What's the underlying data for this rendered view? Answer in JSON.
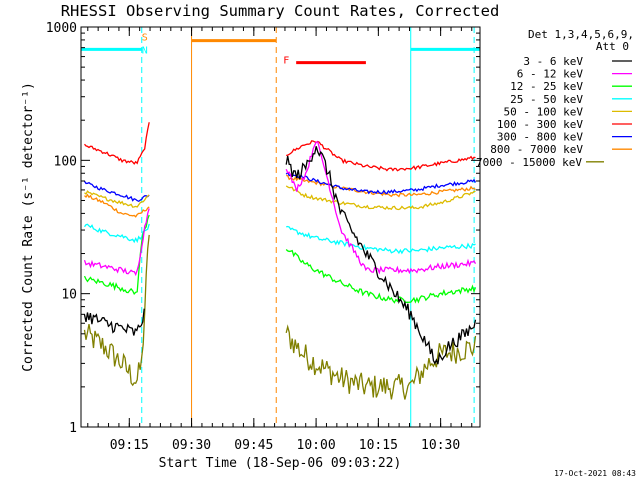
{
  "chart_data": {
    "type": "line",
    "title": "RHESSI Observing Summary Count Rates, Corrected",
    "xlabel": "Start Time (18-Sep-06 09:03:22)",
    "ylabel": "Corrected Count Rate (s⁻¹ detector⁻¹)",
    "yscale": "log",
    "ylim": [
      1,
      1000
    ],
    "xlim": [
      9.0561,
      10.6581
    ],
    "x_unit": "hour of day (UT, 18-Sep-2006)",
    "x_ticks": [
      {
        "x": 9.25,
        "label": "09:15"
      },
      {
        "x": 9.5,
        "label": "09:30"
      },
      {
        "x": 9.75,
        "label": "09:45"
      },
      {
        "x": 10.0,
        "label": "10:00"
      },
      {
        "x": 10.25,
        "label": "10:15"
      },
      {
        "x": 10.5,
        "label": "10:30"
      }
    ],
    "y_ticks": [
      {
        "y": 1,
        "label": "1"
      },
      {
        "y": 10,
        "label": "10"
      },
      {
        "y": 100,
        "label": "100"
      },
      {
        "y": 1000,
        "label": "1000"
      }
    ],
    "legend_header": [
      "Det 1,3,4,5,6,9,",
      "Att 0"
    ],
    "legend_position": "right",
    "series": [
      {
        "name": "3 - 6 keV",
        "color": "#000000",
        "noise": 0.12,
        "segments": [
          {
            "x": [
              9.07,
              9.15,
              9.22,
              9.28,
              9.31
            ],
            "y": [
              7,
              6,
              5.5,
              5,
              7
            ]
          },
          {
            "x": [
              9.88,
              9.92,
              9.96,
              10.0,
              10.04,
              10.1,
              10.2,
              10.3,
              10.38,
              10.45,
              10.48,
              10.53,
              10.6,
              10.64
            ],
            "y": [
              100,
              75,
              90,
              130,
              90,
              40,
              20,
              11,
              7,
              4,
              3,
              4,
              5,
              6
            ]
          }
        ]
      },
      {
        "name": "6 - 12 keV",
        "color": "#ff00ff",
        "noise": 0.05,
        "segments": [
          {
            "x": [
              9.07,
              9.15,
              9.22,
              9.28,
              9.31,
              9.33
            ],
            "y": [
              17,
              16,
              15,
              14,
              30,
              45
            ]
          },
          {
            "x": [
              9.88,
              9.92,
              9.96,
              10.0,
              10.04,
              10.1,
              10.2,
              10.3,
              10.35,
              10.4,
              10.5,
              10.64
            ],
            "y": [
              90,
              60,
              80,
              145,
              80,
              30,
              15,
              15,
              15,
              15,
              16,
              17
            ]
          }
        ]
      },
      {
        "name": "12 - 25 keV",
        "color": "#00ff00",
        "noise": 0.05,
        "segments": [
          {
            "x": [
              9.07,
              9.15,
              9.22,
              9.28,
              9.3,
              9.33
            ],
            "y": [
              13,
              12,
              11,
              10,
              25,
              40
            ]
          },
          {
            "x": [
              9.88,
              9.95,
              10.0,
              10.1,
              10.2,
              10.3,
              10.4,
              10.5,
              10.64
            ],
            "y": [
              22,
              17,
              15,
              12,
              10,
              9,
              9,
              10,
              11
            ]
          }
        ]
      },
      {
        "name": "25 - 50 keV",
        "color": "#00ffff",
        "noise": 0.04,
        "segments": [
          {
            "x": [
              9.07,
              9.15,
              9.22,
              9.28,
              9.33
            ],
            "y": [
              33,
              29,
              27,
              25,
              32
            ]
          },
          {
            "x": [
              9.88,
              9.95,
              10.0,
              10.1,
              10.2,
              10.3,
              10.4,
              10.5,
              10.64
            ],
            "y": [
              31,
              28,
              26,
              24,
              22,
              21,
              21,
              22,
              23
            ]
          }
        ]
      },
      {
        "name": "50 - 100 keV",
        "color": "#ddbb00",
        "noise": 0.03,
        "segments": [
          {
            "x": [
              9.07,
              9.15,
              9.22,
              9.28,
              9.33
            ],
            "y": [
              58,
              52,
              48,
              45,
              55
            ]
          },
          {
            "x": [
              9.88,
              9.95,
              10.0,
              10.1,
              10.2,
              10.3,
              10.4,
              10.5,
              10.64
            ],
            "y": [
              65,
              55,
              52,
              48,
              45,
              44,
              44,
              48,
              58
            ]
          }
        ]
      },
      {
        "name": "100 - 300 keV",
        "color": "#ff0000",
        "noise": 0.03,
        "segments": [
          {
            "x": [
              9.07,
              9.15,
              9.22,
              9.28,
              9.31,
              9.33
            ],
            "y": [
              130,
              115,
              100,
              95,
              120,
              190
            ]
          },
          {
            "x": [
              9.88,
              9.95,
              10.0,
              10.1,
              10.2,
              10.3,
              10.4,
              10.5,
              10.64
            ],
            "y": [
              110,
              130,
              140,
              100,
              90,
              85,
              88,
              95,
              105
            ]
          }
        ]
      },
      {
        "name": "300 - 800 keV",
        "color": "#0000ff",
        "noise": 0.03,
        "segments": [
          {
            "x": [
              9.07,
              9.15,
              9.22,
              9.28,
              9.33
            ],
            "y": [
              68,
              60,
              55,
              50,
              55
            ]
          },
          {
            "x": [
              9.88,
              9.95,
              10.0,
              10.1,
              10.2,
              10.3,
              10.4,
              10.5,
              10.64
            ],
            "y": [
              80,
              75,
              70,
              62,
              58,
              58,
              60,
              65,
              70
            ]
          }
        ]
      },
      {
        "name": "800 - 7000 keV",
        "color": "#ff8800",
        "noise": 0.03,
        "segments": [
          {
            "x": [
              9.07,
              9.15,
              9.22,
              9.28,
              9.33
            ],
            "y": [
              55,
              48,
              40,
              38,
              45
            ]
          },
          {
            "x": [
              9.88,
              9.95,
              10.0,
              10.1,
              10.2,
              10.3,
              10.4,
              10.5,
              10.64
            ],
            "y": [
              75,
              70,
              68,
              62,
              58,
              55,
              55,
              58,
              62
            ]
          }
        ]
      },
      {
        "name": "7000 - 15000 keV",
        "color": "#808000",
        "noise": 0.22,
        "segments": [
          {
            "x": [
              9.07,
              9.15,
              9.22,
              9.28,
              9.3,
              9.33
            ],
            "y": [
              5,
              4,
              3,
              2.2,
              3,
              30
            ]
          },
          {
            "x": [
              9.88,
              9.95,
              10.0,
              10.1,
              10.2,
              10.3,
              10.38,
              10.45,
              10.5,
              10.64
            ],
            "y": [
              5,
              3.5,
              3,
              2.3,
              2,
              2,
              2,
              3,
              3.5,
              4
            ]
          }
        ]
      }
    ],
    "annotations": {
      "saa_bars": [
        {
          "x_start": 9.0561,
          "x_end": 9.3,
          "y": 680
        },
        {
          "x_start": 10.38,
          "x_end": 10.6581,
          "y": 680
        }
      ],
      "night_lines": [
        {
          "x": 9.3,
          "style": "dashed",
          "color": "#00ffff"
        },
        {
          "x": 10.38,
          "style": "solid",
          "color": "#00ffff"
        },
        {
          "x": 10.6345,
          "style": "dashed",
          "color": "#00ffff"
        }
      ],
      "attenuator_lines": [
        {
          "x": 9.5,
          "style": "solid",
          "color": "#ff8800"
        },
        {
          "x": 9.84,
          "style": "dashed",
          "color": "#ff8800"
        }
      ],
      "attenuator_bar": {
        "x_start": 9.5,
        "x_end": 9.84,
        "y": 790,
        "color": "#ff8800"
      },
      "flare_bar": {
        "x_start": 9.92,
        "x_end": 10.2,
        "y": 540,
        "color": "#ff0000"
      },
      "marks": [
        {
          "text": "S",
          "x": 9.312,
          "y": 850,
          "color": "#ff8800"
        },
        {
          "text": "N",
          "x": 9.312,
          "y": 680,
          "color": "#00ffff"
        },
        {
          "text": "F",
          "x": 9.88,
          "y": 570,
          "color": "#ff0000"
        }
      ]
    }
  },
  "timestamp": "17-Oct-2021 08:43"
}
